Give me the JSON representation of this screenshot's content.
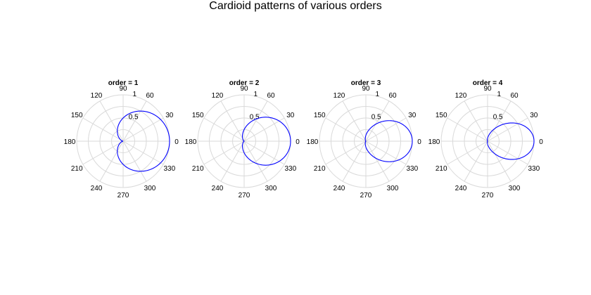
{
  "figure_title": "Cardioid patterns of various orders",
  "colors": {
    "curve": "#0000ff",
    "grid": "#d9d9d9",
    "text": "#000000"
  },
  "chart_data": [
    {
      "type": "line",
      "coordinate_system": "polar",
      "title": "order = 1",
      "function": "r = ((1 + cos(theta)) / 2)^1",
      "series": [
        {
          "order": 1,
          "color": "#0000ff"
        }
      ],
      "rlim": [
        0,
        1
      ],
      "r_ticks": [
        "0.5",
        "1"
      ],
      "theta_ticks": [
        "0",
        "30",
        "60",
        "90",
        "120",
        "150",
        "180",
        "210",
        "240",
        "270",
        "300",
        "330"
      ],
      "grid": true
    },
    {
      "type": "line",
      "coordinate_system": "polar",
      "title": "order = 2",
      "function": "r = ((1 + cos(theta)) / 2)^2",
      "series": [
        {
          "order": 2,
          "color": "#0000ff"
        }
      ],
      "rlim": [
        0,
        1
      ],
      "r_ticks": [
        "0.5",
        "1"
      ],
      "theta_ticks": [
        "0",
        "30",
        "60",
        "90",
        "120",
        "150",
        "180",
        "210",
        "240",
        "270",
        "300",
        "330"
      ],
      "grid": true
    },
    {
      "type": "line",
      "coordinate_system": "polar",
      "title": "order = 3",
      "function": "r = ((1 + cos(theta)) / 2)^3",
      "series": [
        {
          "order": 3,
          "color": "#0000ff"
        }
      ],
      "rlim": [
        0,
        1
      ],
      "r_ticks": [
        "0.5",
        "1"
      ],
      "theta_ticks": [
        "0",
        "30",
        "60",
        "90",
        "120",
        "150",
        "180",
        "210",
        "240",
        "270",
        "300",
        "330"
      ],
      "grid": true
    },
    {
      "type": "line",
      "coordinate_system": "polar",
      "title": "order = 4",
      "function": "r = ((1 + cos(theta)) / 2)^4",
      "series": [
        {
          "order": 4,
          "color": "#0000ff"
        }
      ],
      "rlim": [
        0,
        1
      ],
      "r_ticks": [
        "0.5",
        "1"
      ],
      "theta_ticks": [
        "0",
        "30",
        "60",
        "90",
        "120",
        "150",
        "180",
        "210",
        "240",
        "270",
        "300",
        "330"
      ],
      "grid": true
    }
  ]
}
